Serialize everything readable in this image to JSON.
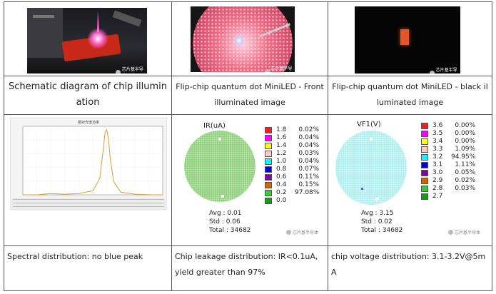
{
  "table": {
    "captions_top": [
      "Schematic diagram of chip illumination",
      "Flip-chip quantum dot MiniLED - Front illuminated image",
      "Flip-chip quantum dot MiniLED - black illuminated image"
    ],
    "captions_bottom": [
      "Spectral distribution: no blue peak",
      "Chip leakage distribution: IR<0.1uA, yield greater than 97%",
      "chip voltage distribution: 3.1-3.2V@5mA"
    ]
  },
  "watermark": "芯片基半导体",
  "spectrum": {
    "title": "相对光谱功率",
    "peak_color": "#d4a233",
    "chart_data": {
      "type": "line",
      "title": "",
      "xlabel": "",
      "ylabel": "",
      "x": [
        380,
        420,
        460,
        500,
        540,
        560,
        580,
        600,
        610,
        615,
        620,
        625,
        630,
        640,
        660,
        700,
        750,
        780
      ],
      "y": [
        0.0,
        0.0,
        0.02,
        0.01,
        0.02,
        0.04,
        0.06,
        0.25,
        0.7,
        0.95,
        1.0,
        0.85,
        0.55,
        0.2,
        0.04,
        0.01,
        0.0,
        0.0
      ],
      "xlim": [
        380,
        780
      ],
      "ylim": [
        0,
        1.05
      ]
    }
  },
  "leakage": {
    "title": "IR(uA)",
    "legend": [
      {
        "value": "1.8",
        "color": "#ff1a1a",
        "pct": "0.02%"
      },
      {
        "value": "1.6",
        "color": "#ff00ff",
        "pct": "0.04%"
      },
      {
        "value": "1.4",
        "color": "#ffff00",
        "pct": "0.04%"
      },
      {
        "value": "1.2",
        "color": "#ffcccc",
        "pct": "0.03%"
      },
      {
        "value": "1.0",
        "color": "#00ffff",
        "pct": "0.04%"
      },
      {
        "value": "0.8",
        "color": "#0000cc",
        "pct": "0.07%"
      },
      {
        "value": "0.6",
        "color": "#8800aa",
        "pct": "0.11%"
      },
      {
        "value": "0.4",
        "color": "#cc6600",
        "pct": "0.15%"
      },
      {
        "value": "0.2",
        "color": "#33cc33",
        "pct": "97.08%"
      },
      {
        "value": "0.0",
        "color": "#1a9a1a",
        "pct": ""
      }
    ],
    "stats": {
      "avg": "Avg : 0.01",
      "std": "Std : 0.06",
      "total": "Total : 34682"
    }
  },
  "voltage": {
    "title": "VF1(V)",
    "legend": [
      {
        "value": "3.6",
        "color": "#ff1a1a",
        "pct": "0.00%"
      },
      {
        "value": "3.5",
        "color": "#ff00ff",
        "pct": "0.00%"
      },
      {
        "value": "3.4",
        "color": "#ffff00",
        "pct": "0.00%"
      },
      {
        "value": "3.3",
        "color": "#ffcccc",
        "pct": "1.09%"
      },
      {
        "value": "3.2",
        "color": "#00ffff",
        "pct": "94.95%"
      },
      {
        "value": "3.1",
        "color": "#0000cc",
        "pct": "1.11%"
      },
      {
        "value": "3.0",
        "color": "#8800aa",
        "pct": "0.05%"
      },
      {
        "value": "2.9",
        "color": "#cc6600",
        "pct": "0.02%"
      },
      {
        "value": "2.8",
        "color": "#33cc33",
        "pct": "0.03%"
      },
      {
        "value": "2.7",
        "color": "#1a9a1a",
        "pct": ""
      }
    ],
    "stats": {
      "avg": "Avg : 3.15",
      "std": "Std : 0.02",
      "total": "Total : 34682"
    }
  }
}
